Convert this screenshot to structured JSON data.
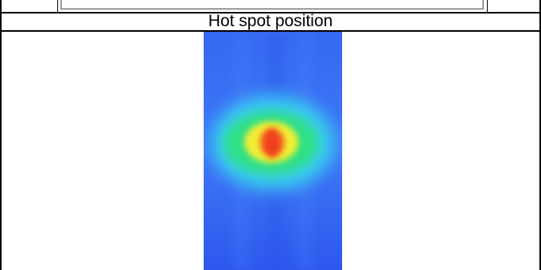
{
  "caption": "Hot spot position",
  "colors": {
    "background": "#2f5cf0",
    "cold": "#3a6bf5",
    "cool": "#3cd9f0",
    "warm": "#2ee08a",
    "hot": "#f6f233",
    "hottest": "#f04a1e"
  }
}
